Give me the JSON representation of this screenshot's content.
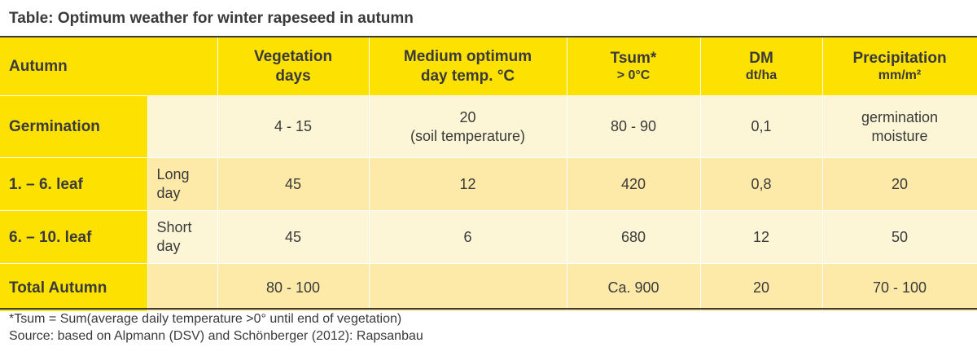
{
  "title": "Table: Optimum weather for winter rapeseed in autumn",
  "header": {
    "autumn": "Autumn",
    "vegetation_days": [
      "Vegetation",
      "days"
    ],
    "medium_temp": [
      "Medium optimum",
      "day temp. °C"
    ],
    "tsum": "Tsum*",
    "tsum_unit": "> 0°C",
    "dm": "DM",
    "dm_unit": "dt/ha",
    "precipitation": "Precipitation",
    "precipitation_unit": "mm/m²"
  },
  "rows": [
    {
      "stage": "Germination",
      "day_length": [
        "",
        ""
      ],
      "vegetation_days": "4 - 15",
      "temp": [
        "20",
        "(soil temperature)"
      ],
      "tsum": "80 - 90",
      "dm": "0,1",
      "precipitation": [
        "germination",
        "moisture"
      ]
    },
    {
      "stage": "1. – 6. leaf",
      "day_length": [
        "Long",
        "day"
      ],
      "vegetation_days": "45",
      "temp": [
        "12",
        ""
      ],
      "tsum": "420",
      "dm": "0,8",
      "precipitation": [
        "20",
        ""
      ]
    },
    {
      "stage": "6. – 10. leaf",
      "day_length": [
        "Short",
        "day"
      ],
      "vegetation_days": "45",
      "temp": [
        "6",
        ""
      ],
      "tsum": "680",
      "dm": "12",
      "precipitation": [
        "50",
        ""
      ]
    },
    {
      "stage": "Total Autumn",
      "day_length": [
        "",
        ""
      ],
      "vegetation_days": "80 - 100",
      "temp": [
        "",
        ""
      ],
      "tsum": "Ca. 900",
      "dm": "20",
      "precipitation": [
        "70 - 100",
        ""
      ]
    }
  ],
  "footnotes": [
    "*Tsum = Sum(average daily temperature >0° until end of vegetation)",
    "Source: based on Alpmann (DSV) and Schönberger (2012): Rapsanbau"
  ],
  "colors": {
    "header_yellow": "#fde100",
    "row_light": "#fdf6d6",
    "row_medium": "#fdeaa8",
    "text": "#3a3a3a"
  }
}
